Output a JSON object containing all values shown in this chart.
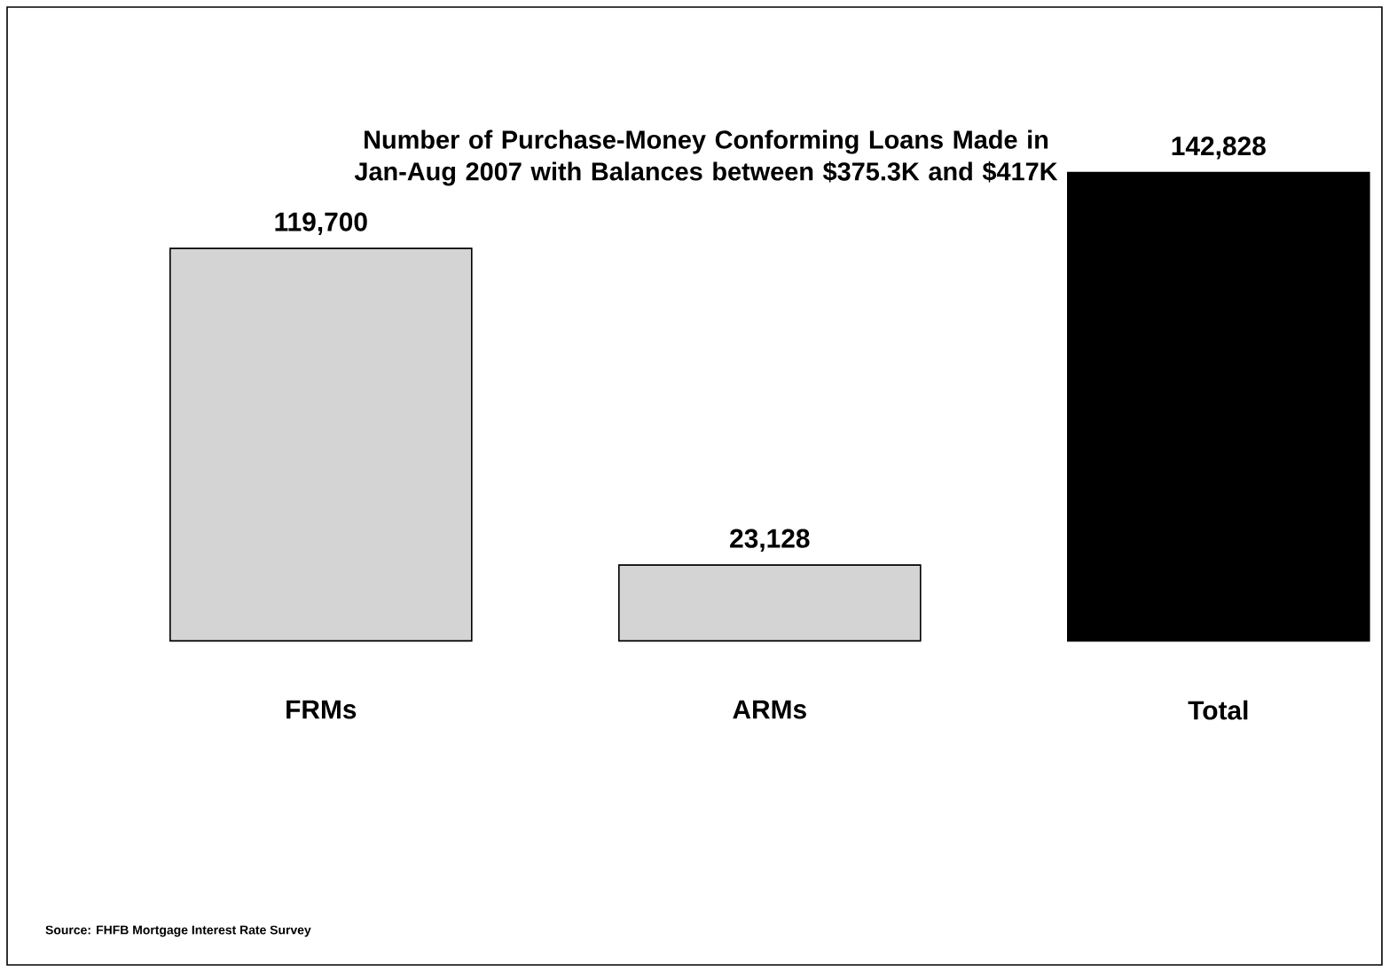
{
  "chart_data": {
    "type": "bar",
    "title": "Number of Purchase-Money Conforming Loans Made in Jan-Aug 2007 with Balances between $375.3K and $417K",
    "categories": [
      "FRMs",
      "ARMs",
      "Total"
    ],
    "values": [
      119700,
      23128,
      142828
    ],
    "colors": [
      "#d4d4d4",
      "#d4d4d4",
      "#000000"
    ],
    "value_labels": [
      "119,700",
      "23,128",
      "142,828"
    ],
    "annotations": [
      "Source: FHFB Mortgage Interest Rate Survey"
    ]
  }
}
